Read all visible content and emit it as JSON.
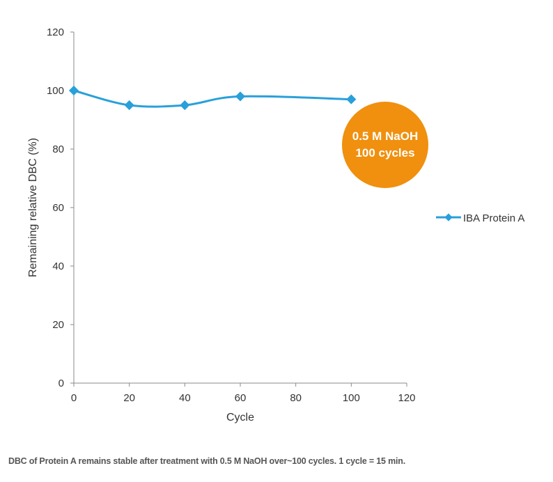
{
  "chart_data": {
    "type": "line",
    "title": "",
    "xlabel": "Cycle",
    "ylabel": "Remaining relative DBC (%)",
    "xlim": [
      0,
      120
    ],
    "ylim": [
      0,
      120
    ],
    "xticks": [
      0,
      20,
      40,
      60,
      80,
      100,
      120
    ],
    "yticks": [
      0,
      20,
      40,
      60,
      80,
      100,
      120
    ],
    "grid": false,
    "legend_position": "right",
    "series": [
      {
        "name": "IBA Protein A",
        "color": "#29a0da",
        "x": [
          0,
          20,
          40,
          60,
          100
        ],
        "y": [
          100,
          95,
          95,
          98,
          97
        ]
      }
    ],
    "annotation": {
      "line1": "0.5 M NaOH",
      "line2": "100 cycles",
      "color": "#f0900e"
    }
  },
  "caption": "DBC of Protein A remains stable after treatment with 0.5 M NaOH over~100 cycles. 1 cycle = 15 min."
}
